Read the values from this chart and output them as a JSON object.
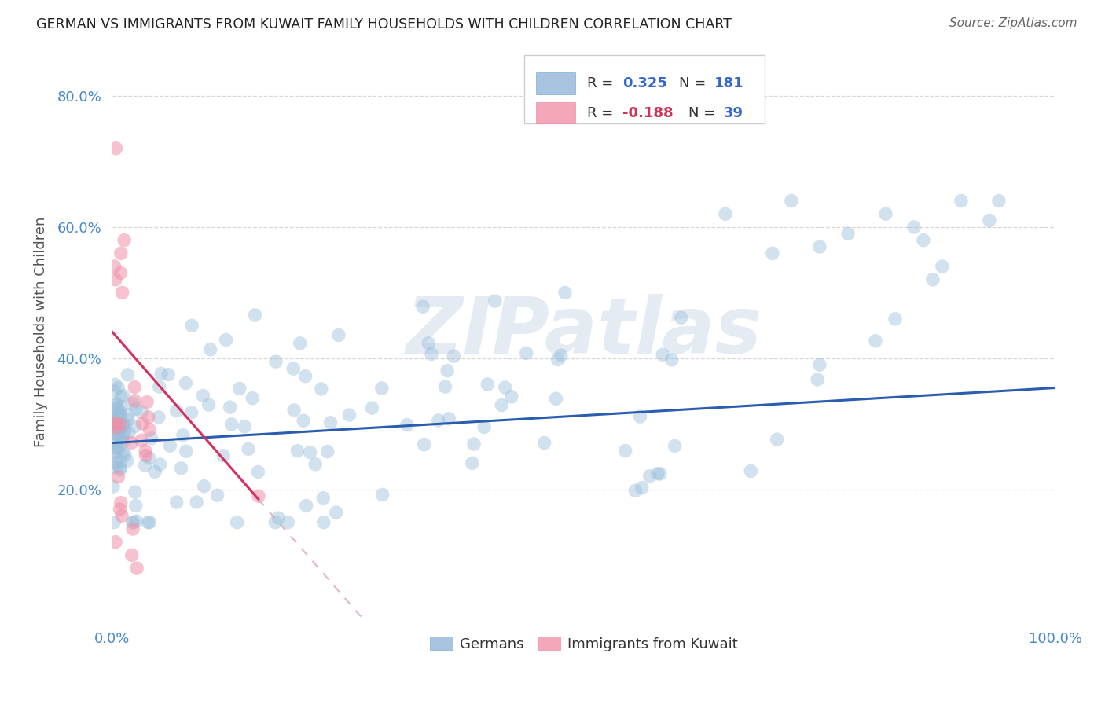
{
  "title": "GERMAN VS IMMIGRANTS FROM KUWAIT FAMILY HOUSEHOLDS WITH CHILDREN CORRELATION CHART",
  "source": "Source: ZipAtlas.com",
  "ylabel": "Family Households with Children",
  "watermark": "ZIPatlas",
  "legend_german_R": 0.325,
  "legend_german_N": 181,
  "legend_kuwait_R": -0.188,
  "legend_kuwait_N": 39,
  "xlim": [
    0.0,
    1.0
  ],
  "ylim": [
    0.0,
    0.88
  ],
  "background_color": "#ffffff",
  "grid_color": "#cccccc",
  "blue_dot_color": "#9bbfdb",
  "pink_dot_color": "#f090a8",
  "blue_line_color": "#2a5db0",
  "pink_line_color": "#d63060",
  "pink_dash_color": "#e0a0b5",
  "blue_tick_color": "#4488cc",
  "blue_legend_color": "#3366cc",
  "pink_legend_color": "#cc3355"
}
